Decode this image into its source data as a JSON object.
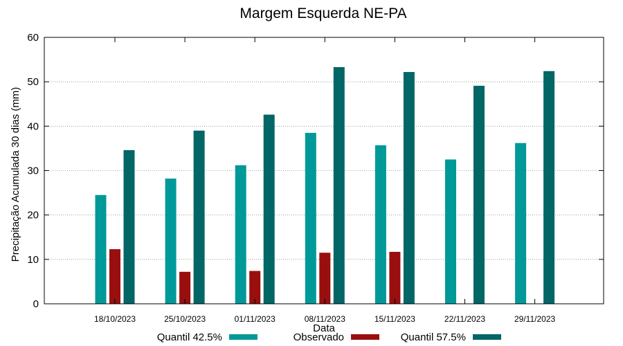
{
  "chart_data": {
    "type": "bar",
    "title": "Margem Esquerda NE-PA",
    "xlabel": "Data",
    "ylabel": "Precipitação Acumulada 30 dias (mm)",
    "ylim": [
      0,
      60
    ],
    "yticks": [
      0,
      10,
      20,
      30,
      40,
      50,
      60
    ],
    "grid": "horizontal dotted",
    "legend_position": "bottom",
    "categories": [
      "18/10/2023",
      "25/10/2023",
      "01/11/2023",
      "08/11/2023",
      "15/11/2023",
      "22/11/2023",
      "29/11/2023"
    ],
    "series": [
      {
        "name": "Quantil 42.5%",
        "color": "#009999",
        "values": [
          24.5,
          28.2,
          31.2,
          38.5,
          35.7,
          32.5,
          36.2
        ]
      },
      {
        "name": "Observado",
        "color": "#990f0f",
        "values": [
          12.3,
          7.2,
          7.4,
          11.5,
          11.7,
          null,
          null
        ]
      },
      {
        "name": "Quantil 57.5%",
        "color": "#006666",
        "values": [
          34.6,
          39.0,
          42.6,
          53.3,
          52.2,
          49.1,
          52.4
        ]
      }
    ]
  }
}
